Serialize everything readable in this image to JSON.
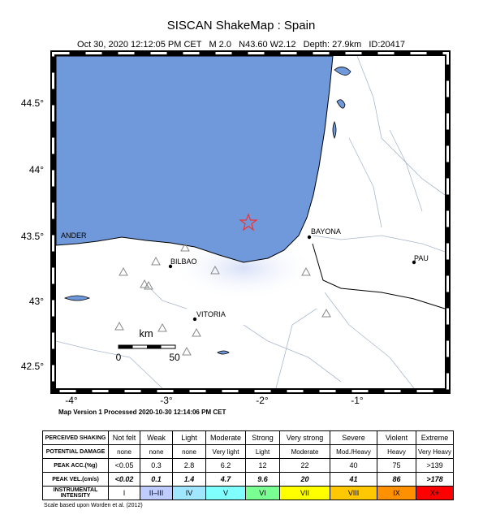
{
  "header": {
    "title": "SISCAN ShakeMap : Spain",
    "subtitle": "Oct 30, 2020 12:12:05 PM CET   M 2.0   N43.60 W2.12   Depth: 27.9km   ID:20417"
  },
  "map": {
    "lat_labels": [
      "44.5°",
      "44°",
      "43.5°",
      "43°",
      "42.5°"
    ],
    "lon_labels": [
      "-4°",
      "-3°",
      "-2°",
      "-1°"
    ],
    "cities": [
      "BAYONA",
      "PAU",
      "BILBAO",
      "VITORIA",
      "ANDER"
    ],
    "scale": {
      "unit": "km",
      "ticks": [
        "0",
        "50"
      ]
    },
    "note": "Map Version 1 Processed 2020-10-30 12:14:06 PM CET"
  },
  "table": {
    "header": {
      "label": "PERCEIVED SHAKING",
      "cells": [
        "Not felt",
        "Weak",
        "Light",
        "Moderate",
        "Strong",
        "Very strong",
        "Severe",
        "Violent",
        "Extreme"
      ]
    },
    "rows": [
      {
        "label": "POTENTIAL DAMAGE",
        "cells": [
          "none",
          "none",
          "none",
          "Very light",
          "Light",
          "Moderate",
          "Mod./Heavy",
          "Heavy",
          "Very Heavy"
        ]
      },
      {
        "label": "PEAK ACC.(%g)",
        "cells": [
          "<0.05",
          "0.3",
          "2.8",
          "6.2",
          "12",
          "22",
          "40",
          "75",
          ">139"
        ]
      },
      {
        "label": "PEAK VEL.(cm/s)",
        "cells": [
          "<0.02",
          "0.1",
          "1.4",
          "4.7",
          "9.6",
          "20",
          "41",
          "86",
          ">178"
        ]
      },
      {
        "label": "INSTRUMENTAL INTENSITY",
        "cells": [
          "I",
          "II–III",
          "IV",
          "V",
          "VI",
          "VII",
          "VIII",
          "IX",
          "X+"
        ]
      }
    ]
  },
  "footnote": "Scale based upon Worden et al. (2012)"
}
